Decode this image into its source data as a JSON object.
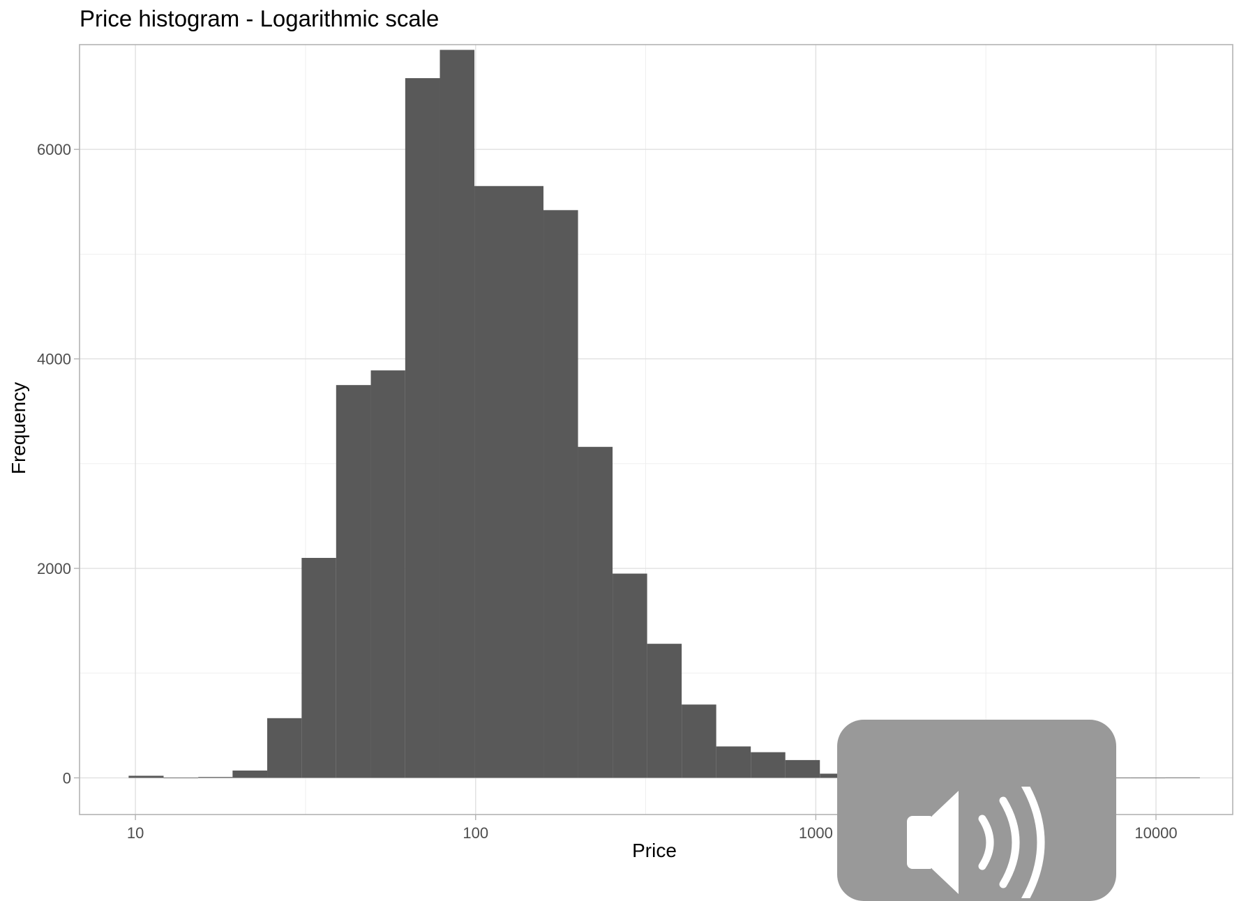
{
  "chart_data": {
    "type": "bar",
    "title": "Price histogram - Logarithmic scale",
    "xlabel": "Price",
    "ylabel": "Frequency",
    "x_scale": "log10",
    "xlim": [
      6.85,
      16810
    ],
    "ylim": [
      -350,
      7000
    ],
    "x_ticks": [
      10,
      100,
      1000,
      10000
    ],
    "x_tick_labels": [
      "10",
      "100",
      "1000",
      "10000"
    ],
    "y_ticks": [
      0,
      2000,
      4000,
      6000
    ],
    "y_tick_labels": [
      "0",
      "2000",
      "4000",
      "6000"
    ],
    "grid": true,
    "legend": "none",
    "bar_color": "#595959",
    "bins": [
      {
        "x0": 9.55,
        "x1": 12.1,
        "count": 20
      },
      {
        "x0": 12.1,
        "x1": 15.3,
        "count": 3
      },
      {
        "x0": 15.3,
        "x1": 19.3,
        "count": 8
      },
      {
        "x0": 19.3,
        "x1": 24.4,
        "count": 70
      },
      {
        "x0": 24.4,
        "x1": 30.8,
        "count": 570
      },
      {
        "x0": 30.8,
        "x1": 38.9,
        "count": 2100
      },
      {
        "x0": 38.9,
        "x1": 49.2,
        "count": 3750
      },
      {
        "x0": 49.2,
        "x1": 62.1,
        "count": 3890
      },
      {
        "x0": 62.1,
        "x1": 78.5,
        "count": 6680
      },
      {
        "x0": 78.5,
        "x1": 99.2,
        "count": 6950
      },
      {
        "x0": 99.2,
        "x1": 125.3,
        "count": 5650
      },
      {
        "x0": 125.3,
        "x1": 158.3,
        "count": 5650
      },
      {
        "x0": 158.3,
        "x1": 200,
        "count": 5420
      },
      {
        "x0": 200,
        "x1": 252.7,
        "count": 3160
      },
      {
        "x0": 252.7,
        "x1": 319.3,
        "count": 1950
      },
      {
        "x0": 319.3,
        "x1": 403.4,
        "count": 1280
      },
      {
        "x0": 403.4,
        "x1": 509.7,
        "count": 700
      },
      {
        "x0": 509.7,
        "x1": 644,
        "count": 300
      },
      {
        "x0": 644,
        "x1": 813.6,
        "count": 245
      },
      {
        "x0": 813.6,
        "x1": 1028,
        "count": 170
      },
      {
        "x0": 1028,
        "x1": 1299,
        "count": 40
      },
      {
        "x0": 1299,
        "x1": 1641,
        "count": 25
      },
      {
        "x0": 1641,
        "x1": 2073,
        "count": 15
      },
      {
        "x0": 2073,
        "x1": 2619,
        "count": 10
      },
      {
        "x0": 2619,
        "x1": 3309,
        "count": 8
      },
      {
        "x0": 3309,
        "x1": 4181,
        "count": 6
      },
      {
        "x0": 4181,
        "x1": 5282,
        "count": 4
      },
      {
        "x0": 5282,
        "x1": 6674,
        "count": 3
      },
      {
        "x0": 6674,
        "x1": 8432,
        "count": 3
      },
      {
        "x0": 8432,
        "x1": 10653,
        "count": 3
      },
      {
        "x0": 10653,
        "x1": 13460,
        "count": 4
      }
    ]
  },
  "overlay": {
    "icon": "speaker-volume-icon",
    "background": "#999999"
  }
}
